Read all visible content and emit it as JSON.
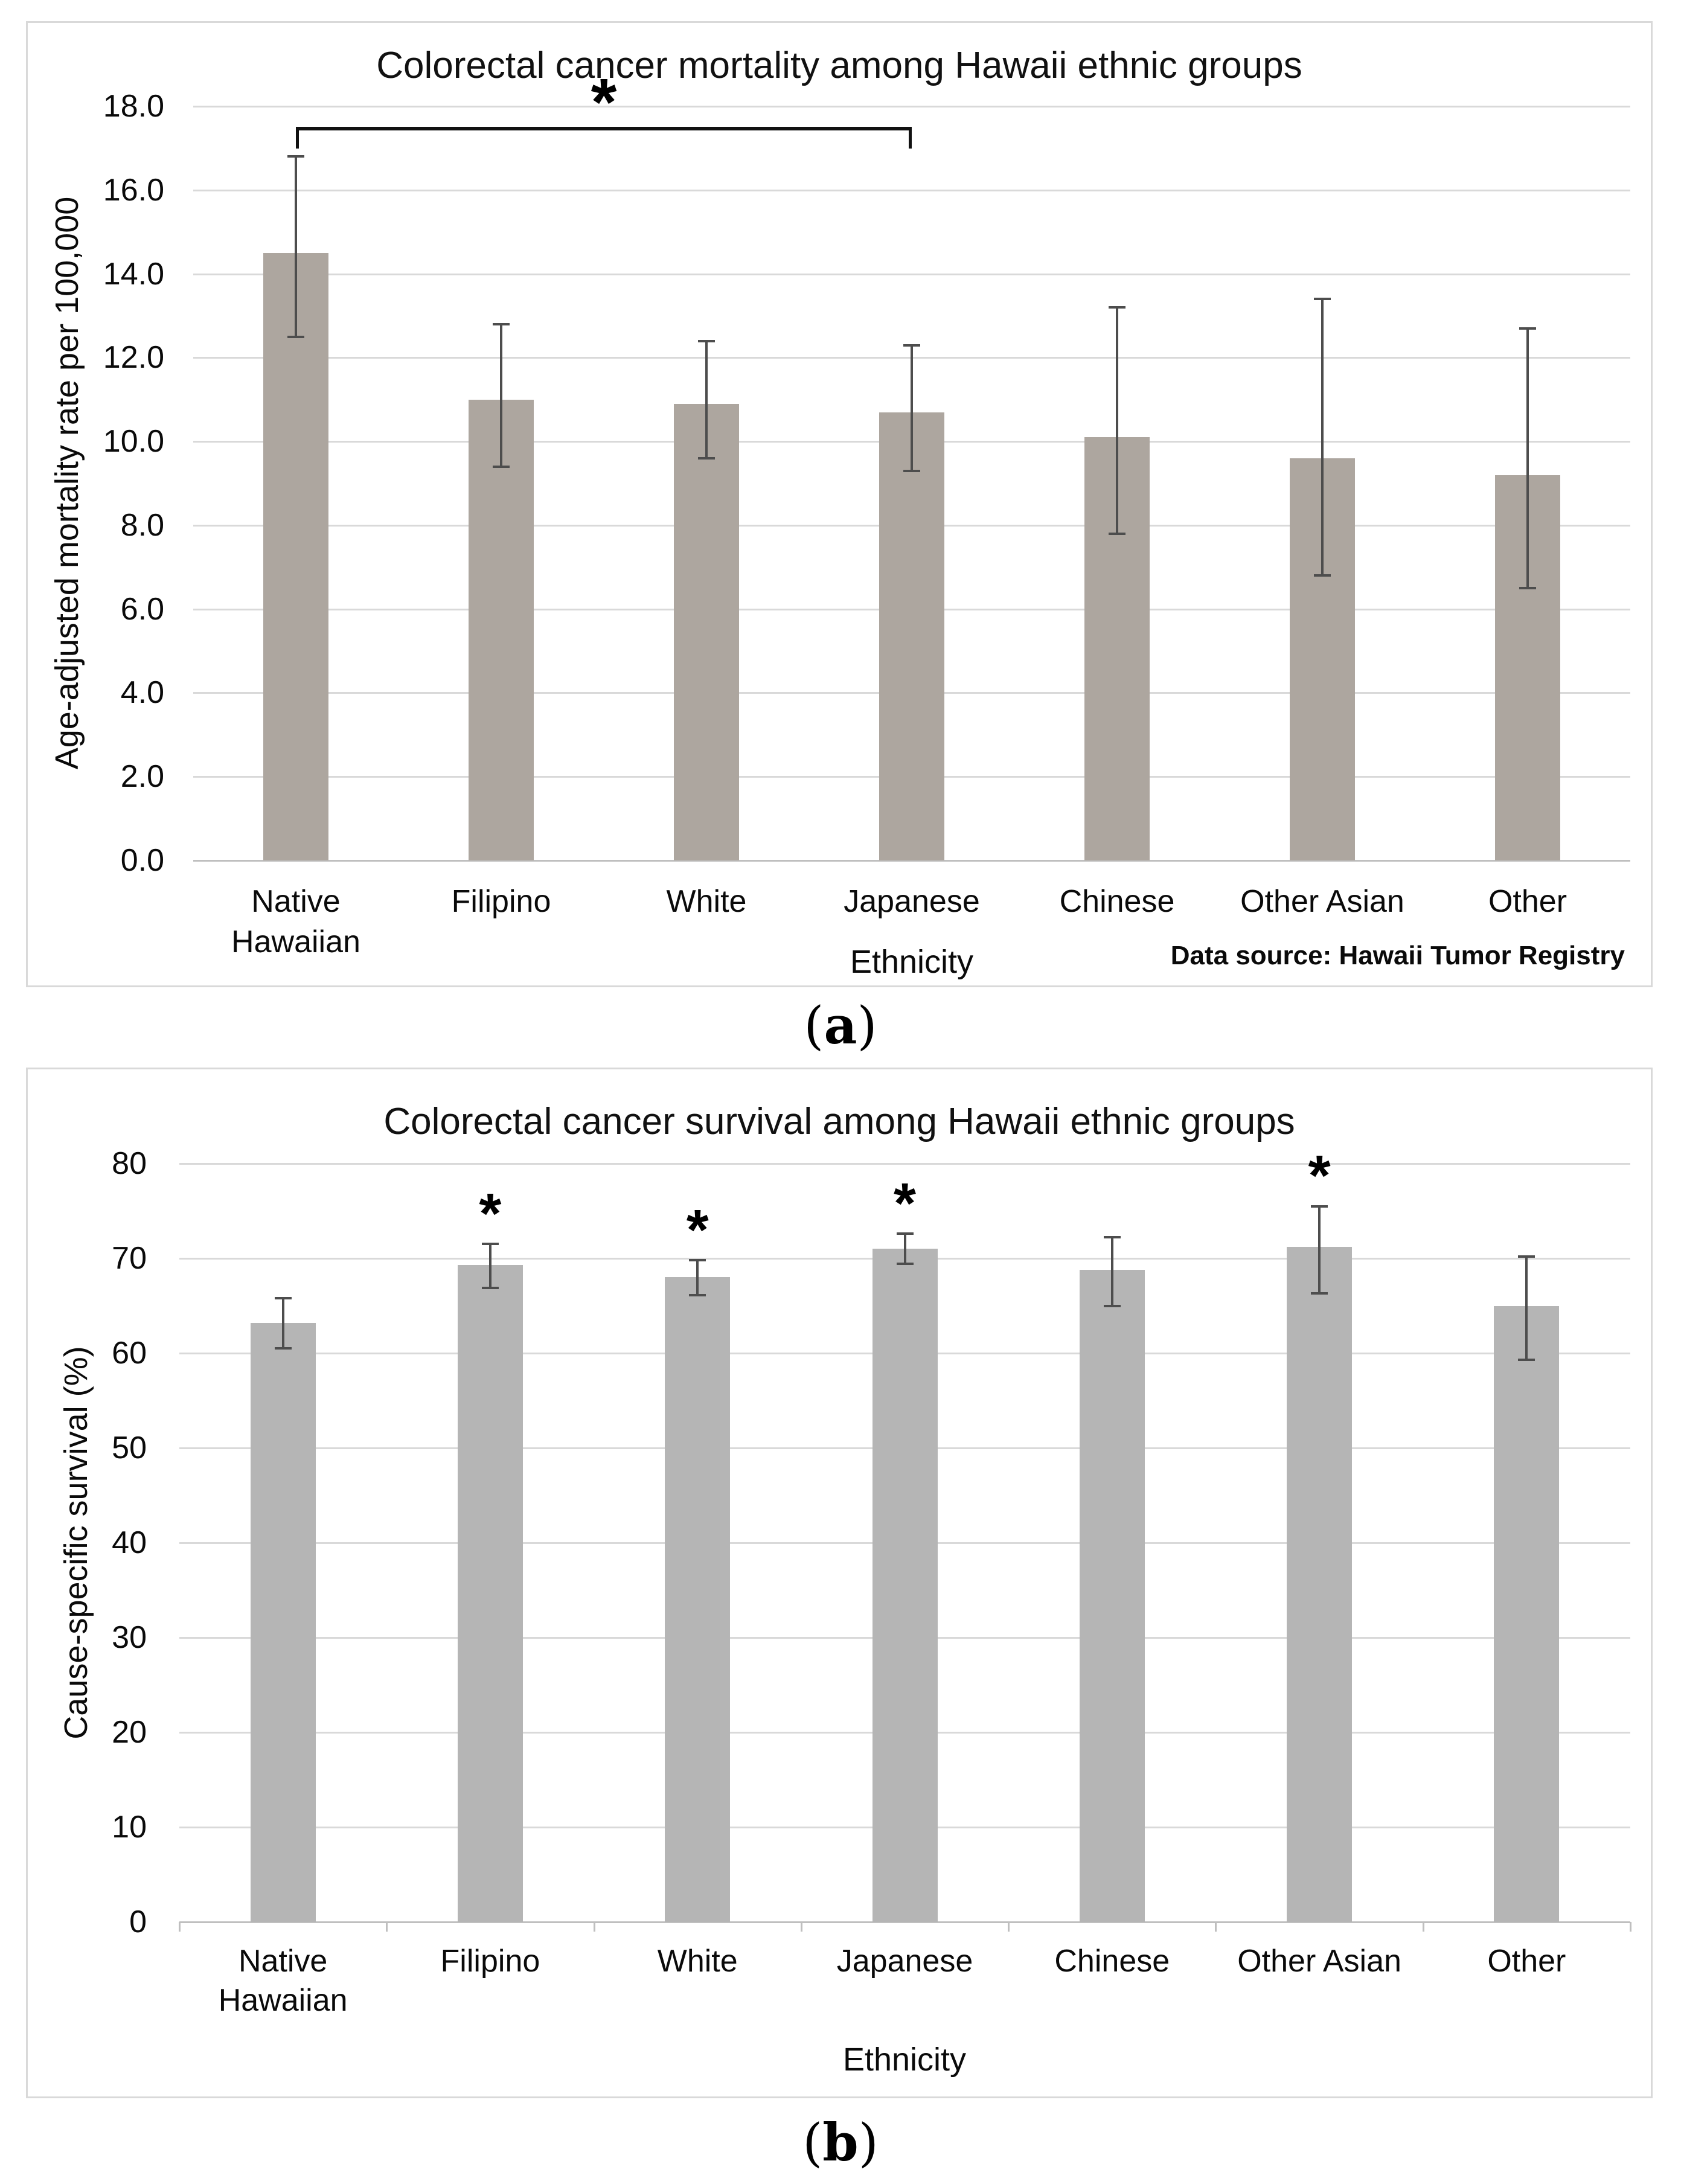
{
  "figure": {
    "caption_a": {
      "open": "(",
      "letter": "a",
      "close": ")"
    },
    "caption_b": {
      "open": "(",
      "letter": "b",
      "close": ")"
    },
    "colors": {
      "bar_mortality": "#ada69f",
      "bar_survival": "#b5b5b5",
      "gridline": "#d9d9d9",
      "axis_line": "#bfbfbf",
      "error_bar": "#4d4d4d",
      "significance": "#000000"
    }
  },
  "chart_data": [
    {
      "id": "mortality",
      "type": "bar",
      "title": "Colorectal cancer mortality among Hawaii ethnic groups",
      "xlabel": "Ethnicity",
      "ylabel": "Age-adjusted mortality rate per 100,000",
      "note": "Data source: Hawaii Tumor Registry",
      "categories": [
        "Native Hawaiian",
        "Filipino",
        "White",
        "Japanese",
        "Chinese",
        "Other Asian",
        "Other"
      ],
      "values": [
        14.5,
        11.0,
        10.9,
        10.7,
        10.1,
        9.6,
        9.2
      ],
      "error_low": [
        12.5,
        9.4,
        9.6,
        9.3,
        7.8,
        6.8,
        6.5
      ],
      "error_high": [
        16.8,
        12.8,
        12.4,
        12.3,
        13.2,
        13.4,
        12.7
      ],
      "ylim": [
        0,
        18
      ],
      "ytick_step": 2,
      "ytick_labels": [
        "0.0",
        "2.0",
        "4.0",
        "6.0",
        "8.0",
        "10.0",
        "12.0",
        "14.0",
        "16.0",
        "18.0"
      ],
      "grid": true,
      "legend": "none",
      "significance": {
        "type": "bracket",
        "from": "Native Hawaiian",
        "to": "Japanese",
        "label": "*"
      }
    },
    {
      "id": "survival",
      "type": "bar",
      "title": "Colorectal cancer survival among Hawaii ethnic groups",
      "xlabel": "Ethnicity",
      "ylabel": "Cause-specific survival (%)",
      "note": "",
      "categories": [
        "Native Hawaiian",
        "Filipino",
        "White",
        "Japanese",
        "Chinese",
        "Other Asian",
        "Other"
      ],
      "values": [
        63.2,
        69.3,
        68.0,
        71.0,
        68.8,
        71.2,
        65.0
      ],
      "error_low": [
        60.5,
        66.9,
        66.1,
        69.4,
        65.0,
        66.3,
        59.3
      ],
      "error_high": [
        65.8,
        71.5,
        69.8,
        72.6,
        72.2,
        75.5,
        70.2
      ],
      "ylim": [
        0,
        80
      ],
      "ytick_step": 10,
      "ytick_labels": [
        "0",
        "10",
        "20",
        "30",
        "40",
        "50",
        "60",
        "70",
        "80"
      ],
      "grid": true,
      "legend": "none",
      "significance": {
        "type": "stars",
        "starred": [
          "Filipino",
          "White",
          "Japanese",
          "Other Asian"
        ],
        "label": "*"
      }
    }
  ]
}
